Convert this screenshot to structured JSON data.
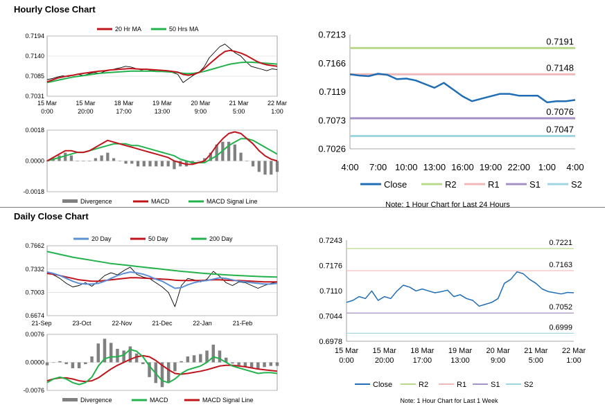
{
  "sections": {
    "hourly_title": "Hourly Close Chart",
    "daily_title": "Daily Close Chart"
  },
  "colors": {
    "close": "#1f6db5",
    "red": "#c0141c",
    "green": "#22b24c",
    "blue_ma": "#5b8fd6",
    "gray": "#808080",
    "r2": "#b9d98a",
    "r1": "#f0b8b8",
    "s1": "#a491c5",
    "s2": "#9fd4e3"
  },
  "chart_data": [
    {
      "id": "hourly_ma",
      "type": "line",
      "legend": [
        "20 Hr MA",
        "50 Hrs MA"
      ],
      "ylim": [
        0.7031,
        0.7194
      ],
      "yticks": [
        "0.7194",
        "0.7140",
        "0.7085",
        "0.7031"
      ],
      "xticks": [
        [
          "15 Mar",
          "0:00"
        ],
        [
          "15 Mar",
          "20:00"
        ],
        [
          "18 Mar",
          "17:00"
        ],
        [
          "19 Mar",
          "13:00"
        ],
        [
          "20 Mar",
          "9:00"
        ],
        [
          "21 Mar",
          "5:00"
        ],
        [
          "22 Mar",
          "1:00"
        ]
      ],
      "close": [
        0.7076,
        0.7079,
        0.7083,
        0.7086,
        0.7084,
        0.7088,
        0.709,
        0.7087,
        0.7092,
        0.7095,
        0.7093,
        0.7098,
        0.7101,
        0.7105,
        0.7108,
        0.7112,
        0.711,
        0.7106,
        0.7102,
        0.7104,
        0.71,
        0.7102,
        0.71,
        0.7098,
        0.7095,
        0.709,
        0.7068,
        0.7078,
        0.7088,
        0.7095,
        0.711,
        0.7135,
        0.715,
        0.7165,
        0.7172,
        0.716,
        0.7148,
        0.714,
        0.7125,
        0.7112,
        0.7108,
        0.7104,
        0.71,
        0.7105,
        0.7103
      ],
      "ma20": [
        0.707,
        0.7075,
        0.708,
        0.7083,
        0.7086,
        0.7088,
        0.7091,
        0.7093,
        0.7095,
        0.7097,
        0.7099,
        0.71,
        0.7102,
        0.7103,
        0.7104,
        0.7105,
        0.7106,
        0.7105,
        0.7104,
        0.7104,
        0.7103,
        0.7102,
        0.7101,
        0.71,
        0.7098,
        0.7096,
        0.709,
        0.7088,
        0.709,
        0.7095,
        0.7105,
        0.7118,
        0.713,
        0.7142,
        0.7152,
        0.7155,
        0.7152,
        0.7148,
        0.7142,
        0.7134,
        0.7126,
        0.712,
        0.7116,
        0.7114,
        0.7112
      ],
      "ma50": [
        0.7068,
        0.7071,
        0.7074,
        0.7077,
        0.708,
        0.7083,
        0.7085,
        0.7087,
        0.7089,
        0.7091,
        0.7093,
        0.7094,
        0.7095,
        0.7096,
        0.7097,
        0.7098,
        0.7099,
        0.7099,
        0.7099,
        0.7099,
        0.7099,
        0.7098,
        0.7098,
        0.7097,
        0.7096,
        0.7095,
        0.7093,
        0.7092,
        0.7093,
        0.7095,
        0.7098,
        0.7102,
        0.7106,
        0.711,
        0.7114,
        0.7118,
        0.712,
        0.7122,
        0.7123,
        0.7123,
        0.7122,
        0.7121,
        0.712,
        0.7119,
        0.7118
      ]
    },
    {
      "id": "hourly_macd",
      "type": "line",
      "legend": [
        "Divergence",
        "MACD",
        "MACD Signal Line"
      ],
      "ylim": [
        -0.0018,
        0.0018
      ],
      "yticks": [
        "0.0018",
        "0.0000",
        "-0.0018"
      ],
      "macd": [
        0.0,
        0.0002,
        0.0004,
        0.0006,
        0.0006,
        0.0005,
        0.0005,
        0.0006,
        0.0008,
        0.001,
        0.0012,
        0.0011,
        0.001,
        0.0009,
        0.0008,
        0.0007,
        0.0006,
        0.0005,
        0.0004,
        0.0003,
        0.0002,
        0.0,
        -0.0001,
        -0.0002,
        -0.0002,
        -0.0001,
        0.0,
        0.0004,
        0.0009,
        0.0013,
        0.0016,
        0.0017,
        0.0016,
        0.0013,
        0.001,
        0.0006,
        0.0003,
        0.0001,
        0.0
      ],
      "signal": [
        0.0,
        0.0001,
        0.0002,
        0.0003,
        0.0004,
        0.0005,
        0.0005,
        0.0006,
        0.0007,
        0.0008,
        0.0009,
        0.001,
        0.001,
        0.001,
        0.0009,
        0.0009,
        0.0008,
        0.0007,
        0.0006,
        0.0005,
        0.0004,
        0.0003,
        0.0001,
        0.0,
        -0.0001,
        -0.0001,
        -0.0001,
        0.0001,
        0.0003,
        0.0006,
        0.0009,
        0.0011,
        0.0013,
        0.0013,
        0.0012,
        0.001,
        0.0008,
        0.0006,
        0.0004
      ]
    },
    {
      "id": "hourly_sr",
      "type": "line",
      "legend": [
        "Close",
        "R2",
        "R1",
        "S1",
        "S2"
      ],
      "ylim": [
        0.7026,
        0.7213
      ],
      "yticks": [
        "0.7213",
        "0.7166",
        "0.7119",
        "0.7073",
        "0.7026"
      ],
      "xticks": [
        "4:00",
        "7:00",
        "10:00",
        "13:00",
        "16:00",
        "19:00",
        "22:00",
        "1:00",
        "4:00"
      ],
      "close": [
        0.7148,
        0.7146,
        0.7145,
        0.7149,
        0.7147,
        0.714,
        0.7141,
        0.7138,
        0.7132,
        0.7126,
        0.7134,
        0.7123,
        0.7112,
        0.7104,
        0.7108,
        0.7112,
        0.7116,
        0.7116,
        0.7113,
        0.7113,
        0.7113,
        0.7102,
        0.7104,
        0.7104,
        0.7106
      ],
      "levels": {
        "R2": 0.7191,
        "R1": 0.7148,
        "S1": 0.7076,
        "S2": 0.7047
      },
      "level_labels": [
        "0.7191",
        "0.7148",
        "0.7076",
        "0.7047"
      ],
      "note": "Note: 1 Hour Chart for Last 24 Hours"
    },
    {
      "id": "daily_ma",
      "type": "line",
      "legend": [
        "20 Day",
        "50 Day",
        "200 Day"
      ],
      "ylim": [
        0.6674,
        0.7662
      ],
      "yticks": [
        "0.7662",
        "0.7332",
        "0.7003",
        "0.6674"
      ],
      "xticks": [
        "21-Sep",
        "23-Oct",
        "22-Nov",
        "21-Dec",
        "22-Jan",
        "21-Feb"
      ],
      "close": [
        0.728,
        0.725,
        0.72,
        0.713,
        0.708,
        0.71,
        0.714,
        0.709,
        0.716,
        0.724,
        0.728,
        0.725,
        0.731,
        0.736,
        0.726,
        0.722,
        0.72,
        0.714,
        0.708,
        0.7,
        0.68,
        0.71,
        0.72,
        0.718,
        0.715,
        0.719,
        0.73,
        0.723,
        0.714,
        0.71,
        0.715,
        0.714,
        0.71,
        0.706,
        0.71,
        0.713,
        0.715
      ],
      "ma20": [
        0.729,
        0.727,
        0.724,
        0.72,
        0.716,
        0.713,
        0.712,
        0.712,
        0.713,
        0.716,
        0.72,
        0.724,
        0.727,
        0.729,
        0.728,
        0.726,
        0.723,
        0.719,
        0.716,
        0.711,
        0.706,
        0.707,
        0.711,
        0.714,
        0.716,
        0.717,
        0.719,
        0.721,
        0.72,
        0.718,
        0.716,
        0.715,
        0.714,
        0.713,
        0.712,
        0.712,
        0.713
      ],
      "ma50": [
        0.727,
        0.726,
        0.724,
        0.722,
        0.72,
        0.718,
        0.717,
        0.716,
        0.716,
        0.717,
        0.718,
        0.719,
        0.72,
        0.721,
        0.721,
        0.7205,
        0.72,
        0.7195,
        0.719,
        0.7185,
        0.7175,
        0.717,
        0.717,
        0.717,
        0.717,
        0.7175,
        0.718,
        0.718,
        0.7175,
        0.717,
        0.717,
        0.7165,
        0.716,
        0.7155,
        0.715,
        0.715,
        0.715
      ],
      "ma200": [
        0.758,
        0.756,
        0.754,
        0.752,
        0.75,
        0.7485,
        0.747,
        0.7455,
        0.744,
        0.7425,
        0.741,
        0.74,
        0.739,
        0.738,
        0.737,
        0.736,
        0.735,
        0.734,
        0.733,
        0.732,
        0.731,
        0.73,
        0.7292,
        0.7284,
        0.7276,
        0.7268,
        0.7262,
        0.7256,
        0.725,
        0.7245,
        0.724,
        0.7236,
        0.7232,
        0.7228,
        0.7225,
        0.7222,
        0.722
      ]
    },
    {
      "id": "daily_macd",
      "type": "line",
      "legend": [
        "Divergence",
        "MACD",
        "MACD Signal Line"
      ],
      "ylim": [
        -0.0076,
        0.0076
      ],
      "yticks": [
        "0.0076",
        "0.0000",
        "-0.0076"
      ],
      "macd": [
        -0.0055,
        -0.0045,
        -0.004,
        -0.0045,
        -0.0055,
        -0.006,
        -0.0055,
        -0.004,
        -0.001,
        0.001,
        0.0015,
        0.0015,
        0.002,
        0.0035,
        0.003,
        0.0015,
        -0.001,
        -0.003,
        -0.005,
        -0.0055,
        -0.0045,
        -0.003,
        -0.002,
        -0.0015,
        -0.001,
        0.0,
        0.0015,
        0.001,
        0.0,
        -0.001,
        -0.0015,
        -0.002,
        -0.0025,
        -0.003,
        -0.0028,
        -0.0028,
        -0.003
      ],
      "signal": [
        -0.005,
        -0.0045,
        -0.0042,
        -0.0042,
        -0.0045,
        -0.005,
        -0.0052,
        -0.005,
        -0.0042,
        -0.003,
        -0.0018,
        -0.0008,
        0.0,
        0.0008,
        0.0015,
        0.0018,
        0.0015,
        0.0005,
        -0.0008,
        -0.002,
        -0.003,
        -0.0032,
        -0.003,
        -0.0027,
        -0.0024,
        -0.002,
        -0.0015,
        -0.001,
        -0.0008,
        -0.0008,
        -0.001,
        -0.0012,
        -0.0015,
        -0.0018,
        -0.002,
        -0.0022,
        -0.0024
      ]
    },
    {
      "id": "daily_sr",
      "type": "line",
      "legend": [
        "Close",
        "R2",
        "R1",
        "S1",
        "S2"
      ],
      "ylim": [
        0.6978,
        0.7243
      ],
      "yticks": [
        "0.7243",
        "0.7176",
        "0.7110",
        "0.7044",
        "0.6978"
      ],
      "xticks": [
        [
          "15 Mar",
          "0:00"
        ],
        [
          "15 Mar",
          "20:00"
        ],
        [
          "18 Mar",
          "17:00"
        ],
        [
          "19 Mar",
          "13:00"
        ],
        [
          "20 Mar",
          "9:00"
        ],
        [
          "21 Mar",
          "5:00"
        ],
        [
          "22 Mar",
          "1:00"
        ]
      ],
      "close": [
        0.708,
        0.7085,
        0.7095,
        0.709,
        0.711,
        0.7085,
        0.7095,
        0.709,
        0.711,
        0.7125,
        0.712,
        0.711,
        0.7115,
        0.711,
        0.7105,
        0.7108,
        0.7112,
        0.7095,
        0.71,
        0.709,
        0.7085,
        0.707,
        0.7075,
        0.708,
        0.709,
        0.713,
        0.714,
        0.716,
        0.7155,
        0.714,
        0.713,
        0.7115,
        0.7108,
        0.7105,
        0.7102,
        0.7106,
        0.7105
      ],
      "levels": {
        "R2": 0.7221,
        "R1": 0.7163,
        "S1": 0.7052,
        "S2": 0.6999
      },
      "level_labels": [
        "0.7221",
        "0.7163",
        "0.7052",
        "0.6999"
      ],
      "note": "Note: 1 Hour Chart for Last 1 Week"
    }
  ]
}
